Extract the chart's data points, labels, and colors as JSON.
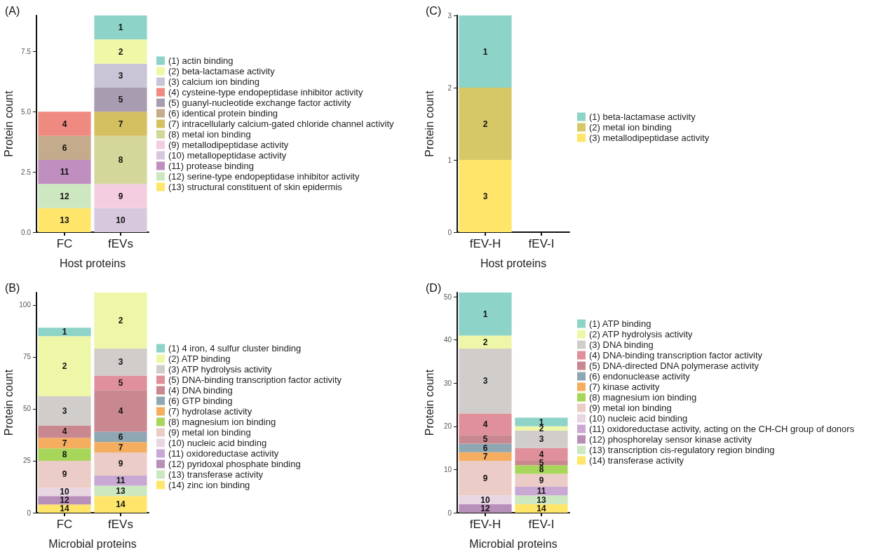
{
  "chart_data": [
    {
      "type": "bar",
      "stacked": true,
      "title": "(A)",
      "xlabel": "Host proteins",
      "ylabel": "Protein count",
      "categories": [
        "FC",
        "fEVs"
      ],
      "ylim": [
        0,
        9
      ],
      "yticks": [
        {
          "value": 0,
          "label": "0.0"
        },
        {
          "value": 2.5,
          "label": "2.5"
        },
        {
          "value": 5,
          "label": "5.0"
        },
        {
          "value": 7.5,
          "label": "7.5"
        }
      ],
      "legend": "right",
      "grid": false,
      "series": [
        {
          "name": "(13) structural constituent of skin epidermis",
          "color": "#ffe66a",
          "values": [
            1,
            0
          ]
        },
        {
          "name": "(12) serine-type endopeptidase inhibitor activity",
          "color": "#cde8c0",
          "values": [
            1,
            0
          ]
        },
        {
          "name": "(11) protease binding",
          "color": "#c08fc0",
          "values": [
            1,
            0
          ]
        },
        {
          "name": "(10) metallopeptidase activity",
          "color": "#d7c8dc",
          "values": [
            0,
            1
          ]
        },
        {
          "name": "(9) metallodipeptidase activity",
          "color": "#f4cee0",
          "values": [
            0,
            1
          ]
        },
        {
          "name": "(8) metal ion binding",
          "color": "#d4d79a",
          "values": [
            0,
            2
          ]
        },
        {
          "name": "(7) intracellularly calcium-gated chloride channel activity",
          "color": "#d4c060",
          "values": [
            0,
            1
          ]
        },
        {
          "name": "(6) identical protein binding",
          "color": "#c4ab8c",
          "values": [
            1,
            0
          ]
        },
        {
          "name": "(5) guanyl-nucleotide exchange factor activity",
          "color": "#a89cb0",
          "values": [
            0,
            1
          ]
        },
        {
          "name": "(4) cysteine-type endopeptidase inhibitor activity",
          "color": "#ee8a80",
          "values": [
            1,
            0
          ]
        },
        {
          "name": "(3) calcium ion binding",
          "color": "#c9c5d6",
          "values": [
            0,
            1
          ]
        },
        {
          "name": "(2) beta-lactamase activity",
          "color": "#f0f8a8",
          "values": [
            0,
            1
          ]
        },
        {
          "name": "(1) actin binding",
          "color": "#8dd3c7",
          "values": [
            0,
            1
          ]
        }
      ],
      "annotations": [
        "13",
        "12",
        "11",
        "10",
        "9",
        "8",
        "7",
        "6",
        "5",
        "4",
        "3",
        "2",
        "1"
      ]
    },
    {
      "type": "bar",
      "stacked": true,
      "title": "(B)",
      "xlabel": "Microbial proteins",
      "ylabel": "Protein count",
      "categories": [
        "FC",
        "fEVs"
      ],
      "ylim": [
        0,
        106
      ],
      "yticks": [
        0,
        25,
        50,
        75,
        100
      ],
      "legend": "right",
      "grid": false,
      "series": [
        {
          "name": "(14) zinc ion binding",
          "color": "#ffe66a",
          "values": [
            4,
            8
          ]
        },
        {
          "name": "(13) transferase activity",
          "color": "#cce8c0",
          "values": [
            0,
            5
          ]
        },
        {
          "name": "(12) pyridoxal phosphate binding",
          "color": "#b88fb8",
          "values": [
            4,
            0
          ]
        },
        {
          "name": "(11) oxidoreductase activity",
          "color": "#c9a8d4",
          "values": [
            0,
            5
          ]
        },
        {
          "name": "(10) nucleic acid binding",
          "color": "#e8d6e2",
          "values": [
            4,
            0
          ]
        },
        {
          "name": "(9) metal ion binding",
          "color": "#ecccc6",
          "values": [
            13,
            11
          ]
        },
        {
          "name": "(8) magnesium ion binding",
          "color": "#a8d65a",
          "values": [
            6,
            0
          ]
        },
        {
          "name": "(7) hydrolase activity",
          "color": "#f5ae5f",
          "values": [
            5,
            5
          ]
        },
        {
          "name": "(6) GTP binding",
          "color": "#8fa7b3",
          "values": [
            0,
            5
          ]
        },
        {
          "name": "(4) DNA binding",
          "color": "#c9888f",
          "values": [
            6,
            20
          ]
        },
        {
          "name": "(5) DNA-binding transcription factor activity",
          "color": "#e0909a",
          "values": [
            0,
            7
          ]
        },
        {
          "name": "(3) ATP hydrolysis activity",
          "color": "#d0cdcb",
          "values": [
            14,
            13
          ]
        },
        {
          "name": "(2) ATP binding",
          "color": "#eef7a8",
          "values": [
            29,
            27
          ]
        },
        {
          "name": "(1) 4 iron, 4 sulfur cluster binding",
          "color": "#8dd3c7",
          "values": [
            4,
            0
          ]
        }
      ],
      "annotations": [
        "14",
        "14",
        "13",
        "12",
        "11",
        "10",
        "9",
        "9",
        "8",
        "7",
        "7",
        "6",
        "4",
        "4",
        "5",
        "3",
        "3",
        "2",
        "2",
        "1"
      ]
    },
    {
      "type": "bar",
      "stacked": true,
      "title": "(C)",
      "xlabel": "Host proteins",
      "ylabel": "Protein count",
      "categories": [
        "fEV-H",
        "fEV-I"
      ],
      "ylim": [
        0,
        3
      ],
      "yticks": [
        0,
        1,
        2,
        3
      ],
      "legend": "right",
      "grid": false,
      "series": [
        {
          "name": "(3) metallodipeptidase activity",
          "color": "#ffe66a",
          "values": [
            1,
            0
          ]
        },
        {
          "name": "(2) metal ion binding",
          "color": "#d6c866",
          "values": [
            1,
            0
          ]
        },
        {
          "name": "(1) beta-lactamase activity",
          "color": "#8dd3c7",
          "values": [
            1,
            0
          ]
        }
      ],
      "annotations": [
        "3",
        "2",
        "1"
      ]
    },
    {
      "type": "bar",
      "stacked": true,
      "title": "(D)",
      "xlabel": "Microbial proteins",
      "ylabel": "Protein count",
      "categories": [
        "fEV-H",
        "fEV-I"
      ],
      "ylim": [
        0,
        51
      ],
      "yticks": [
        0,
        10,
        20,
        30,
        40,
        50
      ],
      "legend": "right",
      "grid": false,
      "series": [
        {
          "name": "(14) transferase activity",
          "color": "#ffe66a",
          "values": [
            0,
            2
          ]
        },
        {
          "name": "(13) transcription cis-regulatory region binding",
          "color": "#cce8c0",
          "values": [
            0,
            2
          ]
        },
        {
          "name": "(12) phosphorelay sensor kinase activity",
          "color": "#b88fb8",
          "values": [
            2,
            0
          ]
        },
        {
          "name": "(11) oxidoreductase activity, acting on the CH-CH group of donors",
          "color": "#c9a8d4",
          "values": [
            0,
            2
          ]
        },
        {
          "name": "(10) nucleic acid binding",
          "color": "#e8d6e2",
          "values": [
            2,
            0
          ]
        },
        {
          "name": "(9) metal ion binding",
          "color": "#ecccc6",
          "values": [
            8,
            3
          ]
        },
        {
          "name": "(8) magnesium ion binding",
          "color": "#a8d65a",
          "values": [
            0,
            2
          ]
        },
        {
          "name": "(7) kinase activity",
          "color": "#f5ae5f",
          "values": [
            2,
            0
          ]
        },
        {
          "name": "(6) endonuclease activity",
          "color": "#8fa7b3",
          "values": [
            2,
            0
          ]
        },
        {
          "name": "(5) DNA-directed DNA polymerase activity",
          "color": "#c9888f",
          "values": [
            2,
            1
          ]
        },
        {
          "name": "(4) DNA-binding transcription factor activity",
          "color": "#e0909a",
          "values": [
            5,
            3
          ]
        },
        {
          "name": "(3) DNA binding",
          "color": "#d0cdcb",
          "values": [
            15,
            4
          ]
        },
        {
          "name": "(2) ATP hydrolysis activity",
          "color": "#eef7a8",
          "values": [
            3,
            1
          ]
        },
        {
          "name": "(1) ATP binding",
          "color": "#8dd3c7",
          "values": [
            10,
            2
          ]
        }
      ],
      "annotations": [
        "14",
        "13",
        "12",
        "11",
        "10",
        "9",
        "9",
        "8",
        "7",
        "6",
        "5",
        "5",
        "4",
        "4",
        "3",
        "3",
        "2",
        "2",
        "1",
        "1"
      ]
    }
  ]
}
